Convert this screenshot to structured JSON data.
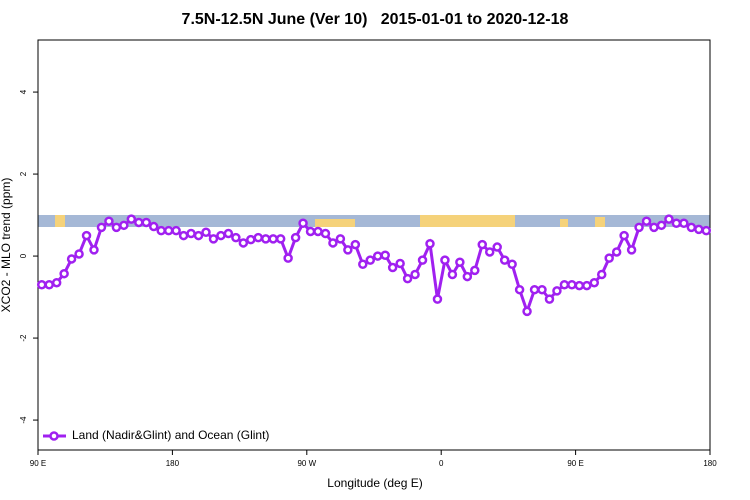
{
  "chart_data": {
    "type": "line",
    "title": "7.5N-12.5N June (Ver 10)   2015-01-01 to 2020-12-18",
    "x_label": "Longitude (deg E)",
    "y_label": "XCO2 - MLO trend (ppm)",
    "xlim": [
      90,
      540
    ],
    "ylim": [
      -4.73,
      5.27
    ],
    "xticks": [
      {
        "value": 90,
        "label": "90 E"
      },
      180,
      {
        "value": 270,
        "label": "90 W"
      },
      {
        "value": 360,
        "label": "0"
      },
      {
        "value": 450,
        "label": "90 E"
      },
      {
        "value": 540,
        "label": "180"
      }
    ],
    "yticks": [
      4,
      2,
      0,
      -2,
      -4
    ],
    "legend": "bottom-left",
    "x": [
      92.5,
      97.5,
      102.5,
      107.5,
      112.5,
      117.5,
      122.5,
      127.5,
      132.5,
      137.5,
      142.5,
      147.5,
      152.5,
      157.5,
      162.5,
      167.5,
      172.5,
      177.5,
      182.5,
      187.5,
      192.5,
      197.5,
      202.5,
      207.5,
      212.5,
      217.5,
      222.5,
      227.5,
      232.5,
      237.5,
      242.5,
      247.5,
      252.5,
      257.5,
      262.5,
      267.5,
      272.5,
      277.5,
      282.5,
      287.5,
      292.5,
      297.5,
      302.5,
      307.5,
      312.5,
      317.5,
      322.5,
      327.5,
      332.5,
      337.5,
      342.5,
      347.5,
      352.5,
      357.5,
      362.5,
      367.5,
      372.5,
      377.5,
      382.5,
      387.5,
      392.5,
      397.5,
      402.5,
      407.5,
      412.5,
      417.5,
      422.5,
      427.5,
      432.5,
      437.5,
      442.5,
      447.5,
      452.5,
      457.5,
      462.5,
      467.5,
      472.5,
      477.5,
      482.5,
      487.5,
      492.5,
      497.5,
      502.5,
      507.5,
      512.5,
      517.5,
      522.5,
      527.5,
      532.5,
      537.5
    ],
    "series": [
      {
        "name": "Land (Nadir&Glint) and Ocean (Glint)",
        "color": "#a020f0",
        "values": [
          -0.7,
          -0.7,
          -0.65,
          -0.43,
          -0.07,
          0.05,
          0.5,
          0.15,
          0.7,
          0.85,
          0.7,
          0.75,
          0.9,
          0.82,
          0.82,
          0.72,
          0.62,
          0.62,
          0.62,
          0.5,
          0.55,
          0.5,
          0.58,
          0.42,
          0.5,
          0.55,
          0.45,
          0.32,
          0.4,
          0.45,
          0.42,
          0.42,
          0.42,
          -0.05,
          0.45,
          0.8,
          0.6,
          0.6,
          0.55,
          0.32,
          0.42,
          0.15,
          0.28,
          -0.2,
          -0.1,
          0,
          0.02,
          -0.28,
          -0.18,
          -0.55,
          -0.45,
          -0.1,
          0.3,
          -1.05,
          -0.1,
          -0.45,
          -0.15,
          -0.5,
          -0.35,
          0.28,
          0.1,
          0.22,
          -0.1,
          -0.2,
          -0.82,
          -1.35,
          -0.82,
          -0.82,
          -1.05,
          -0.85,
          -0.7,
          -0.7,
          -0.72,
          -0.72,
          -0.65,
          -0.45,
          -0.05,
          0.1,
          0.5,
          0.15,
          0.7,
          0.85,
          0.7,
          0.75,
          0.9,
          0.8,
          0.8,
          0.7,
          0.65,
          0.62
        ]
      }
    ]
  }
}
